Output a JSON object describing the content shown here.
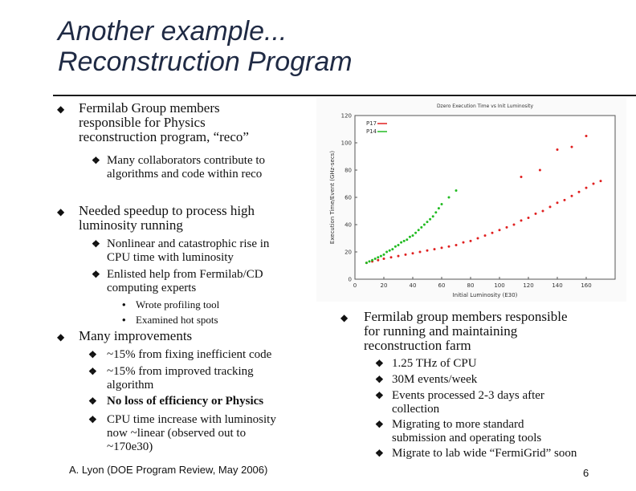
{
  "slide": {
    "title_line1": "Another example...",
    "title_line2": "Reconstruction Program"
  },
  "left": {
    "b1": {
      "text_lines": [
        "Fermilab Group members",
        "responsible for Physics",
        "reconstruction program, “reco”"
      ],
      "subs": [
        {
          "lines": [
            "Many collaborators contribute to",
            "algorithms and code within reco"
          ]
        }
      ]
    },
    "b2": {
      "text_lines": [
        "Needed speedup to process high",
        "luminosity running"
      ],
      "subs": [
        {
          "lines": [
            "Nonlinear and catastrophic rise in",
            "CPU time with luminosity"
          ]
        },
        {
          "lines": [
            "Enlisted help from Fermilab/CD",
            "computing experts"
          ]
        }
      ],
      "subsubs": [
        "Wrote profiling tool",
        "Examined hot spots"
      ]
    },
    "b3": {
      "text_lines": [
        "Many improvements"
      ],
      "subs": [
        {
          "lines": [
            "~15% from fixing inefficient code"
          ]
        },
        {
          "lines": [
            "~15% from improved tracking",
            "algorithm"
          ]
        },
        {
          "lines": [
            "No loss of efficiency or Physics"
          ]
        },
        {
          "lines": [
            "CPU time increase with luminosity",
            "now ~linear (observed out to",
            "~170e30)"
          ]
        }
      ]
    }
  },
  "right": {
    "b1": {
      "text_lines": [
        "Fermilab group members responsible",
        "for running and maintaining",
        "reconstruction farm"
      ],
      "subs": [
        {
          "lines": [
            "1.25 THz of CPU"
          ]
        },
        {
          "lines": [
            "30M events/week"
          ]
        },
        {
          "lines": [
            "Events processed 2-3 days after",
            "collection"
          ]
        },
        {
          "lines": [
            "Migrating to more standard",
            "submission and operating tools"
          ]
        },
        {
          "lines": [
            "Migrate to lab wide “FermiGrid” soon"
          ]
        }
      ]
    }
  },
  "footer": {
    "text": "A. Lyon (DOE Program Review, May 2006)",
    "page": "6"
  },
  "chart_data": {
    "type": "scatter",
    "title": "Dzero Execution Time vs Init Luminosity",
    "xlabel": "Initial Luminosity (E30)",
    "ylabel": "Execution Time/Event (GHz-secs)",
    "xlim": [
      0,
      180
    ],
    "ylim": [
      0,
      120
    ],
    "xticks": [
      0,
      20,
      40,
      60,
      80,
      100,
      120,
      140,
      160
    ],
    "yticks": [
      0,
      20,
      40,
      60,
      80,
      100,
      120
    ],
    "legend": "top-left",
    "series": [
      {
        "name": "P17",
        "color": "#e02020",
        "x": [
          8,
          12,
          16,
          20,
          25,
          30,
          35,
          40,
          45,
          50,
          55,
          60,
          65,
          70,
          75,
          80,
          85,
          90,
          95,
          100,
          105,
          110,
          115,
          120,
          125,
          130,
          135,
          140,
          145,
          150,
          155,
          160,
          165,
          170,
          115,
          128,
          140,
          150,
          160
        ],
        "y": [
          12,
          13,
          14,
          15,
          16,
          17,
          18,
          19,
          20,
          21,
          22,
          23,
          24,
          25,
          27,
          28,
          30,
          32,
          34,
          36,
          38,
          40,
          43,
          45,
          48,
          50,
          53,
          56,
          58,
          61,
          64,
          67,
          70,
          72,
          75,
          80,
          95,
          97,
          105
        ]
      },
      {
        "name": "P14",
        "color": "#22bb22",
        "x": [
          8,
          10,
          12,
          14,
          16,
          18,
          20,
          22,
          24,
          26,
          28,
          30,
          32,
          34,
          36,
          38,
          40,
          42,
          44,
          46,
          48,
          50,
          52,
          54,
          56,
          58,
          60,
          65,
          70
        ],
        "y": [
          12,
          13,
          14,
          15,
          16,
          17,
          18,
          20,
          21,
          22,
          24,
          25,
          27,
          28,
          29,
          31,
          32,
          34,
          36,
          38,
          40,
          42,
          44,
          46,
          49,
          52,
          55,
          60,
          65
        ]
      }
    ]
  }
}
